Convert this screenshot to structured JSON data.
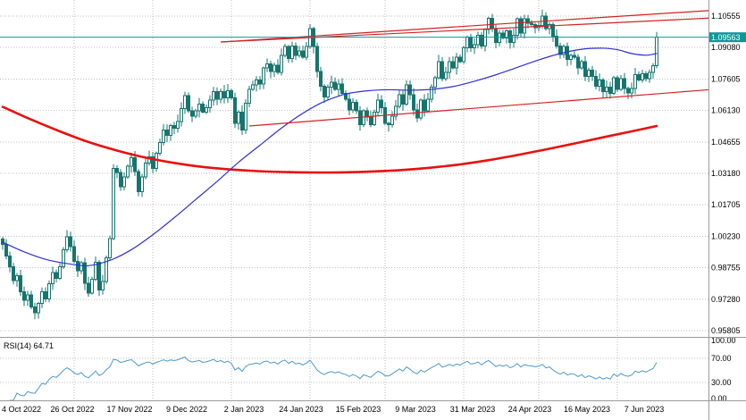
{
  "colors": {
    "background": "#ffffff",
    "grid": "#bdbdbd",
    "candle_stroke": "#16756d",
    "bull_fill": "#ffffff",
    "bear_fill": "#16756d",
    "ma_fast": "#3030cf",
    "ma_slow": "#e8100d",
    "trendline": "#d22222",
    "hline": "#0d9898",
    "badge_bg": "#0d9898",
    "badge_text": "#ffffff",
    "rsi_line": "#4f97cb",
    "separator": "#9a9a9a",
    "axis_text": "#000000"
  },
  "price_axis": {
    "ticks": [
      "1.10555",
      "1.09080",
      "1.07605",
      "1.06130",
      "1.04655",
      "1.03180",
      "1.01705",
      "1.00230",
      "0.98755",
      "0.97280",
      "0.95805"
    ],
    "current_price_label": "1.09563"
  },
  "time_axis": {
    "labels": [
      "4 Oct 2022",
      "26 Oct 2022",
      "17 Nov 2022",
      "9 Dec 2022",
      "2 Jan 2023",
      "24 Jan 2023",
      "15 Feb 2023",
      "9 Mar 2023",
      "31 Mar 2023",
      "24 Apr 2023",
      "16 May 2023",
      "7 Jun 2023"
    ]
  },
  "rsi_pane": {
    "label": "RSI(14) 64.71",
    "ticks": [
      "100.00",
      "70.00",
      "30.00",
      "0.00"
    ],
    "tick_values": [
      100,
      70,
      30,
      0
    ],
    "level_lines": [
      70,
      30
    ]
  },
  "chart_data": {
    "type": "candlestick",
    "title": "",
    "xlabel": "",
    "ylabel": "",
    "ylim": [
      0.9555,
      1.1131
    ],
    "price_ticks": [
      1.10555,
      1.0908,
      1.07605,
      1.0613,
      1.04655,
      1.0318,
      1.01705,
      1.0023,
      0.98755,
      0.9728,
      0.95805
    ],
    "x_labels": [
      "4 Oct 2022",
      "26 Oct 2022",
      "17 Nov 2022",
      "9 Dec 2022",
      "2 Jan 2023",
      "24 Jan 2023",
      "15 Feb 2023",
      "9 Mar 2023",
      "31 Mar 2023",
      "24 Apr 2023",
      "16 May 2023",
      "7 Jun 2023"
    ],
    "x_label_indices": [
      0,
      16,
      32,
      48,
      64,
      80,
      96,
      112,
      128,
      144,
      160,
      176
    ],
    "month_grid_indices": [
      20,
      42,
      64,
      86,
      107,
      129,
      150,
      172
    ],
    "first_open": 1.001,
    "closes": [
      0.9985,
      0.993,
      0.988,
      0.9815,
      0.9838,
      0.9762,
      0.9722,
      0.9748,
      0.9692,
      0.9665,
      0.9708,
      0.9762,
      0.973,
      0.98,
      0.9852,
      0.9825,
      0.988,
      0.996,
      1.002,
      0.9975,
      0.9905,
      0.9862,
      0.99,
      0.9802,
      0.9756,
      0.9822,
      0.9902,
      0.9772,
      0.9812,
      0.9922,
      1.0012,
      1.034,
      1.0322,
      1.0256,
      1.0302,
      1.0352,
      1.0392,
      1.0326,
      1.0232,
      1.0302,
      1.0366,
      1.0396,
      1.0342,
      1.0412,
      1.0462,
      1.0522,
      1.0496,
      1.0542,
      1.053,
      1.0562,
      1.0622,
      1.0682,
      1.0612,
      1.0586,
      1.0612,
      1.0642,
      1.0606,
      1.0626,
      1.0662,
      1.0702,
      1.0666,
      1.0702,
      1.0672,
      1.0706,
      1.0672,
      1.0552,
      1.0606,
      1.0522,
      1.0646,
      1.0712,
      1.0732,
      1.0756,
      1.0736,
      1.0812,
      1.0832,
      1.0796,
      1.0826,
      1.0792,
      1.0872,
      1.0912,
      1.0856,
      1.0916,
      1.0872,
      1.0892,
      1.0862,
      1.0912,
      1.0996,
      1.0912,
      1.0796,
      1.0726,
      1.0676,
      1.0722,
      1.0746,
      1.0712,
      1.0736,
      1.0692,
      1.0666,
      1.0616,
      1.0652,
      1.0612,
      1.0546,
      1.0612,
      1.0582,
      1.0546,
      1.0606,
      1.0662,
      1.0626,
      1.0552,
      1.0546,
      1.0586,
      1.0632,
      1.0686,
      1.0642,
      1.0732,
      1.0686,
      1.0616,
      1.0577,
      1.0662,
      1.0612,
      1.0666,
      1.0722,
      1.0766,
      1.0842,
      1.0762,
      1.0792,
      1.0842,
      1.0812,
      1.0862,
      1.0842,
      1.0906,
      1.0956,
      1.0906,
      1.0922,
      1.0966,
      1.0916,
      1.0992,
      1.1046,
      1.0996,
      1.0932,
      1.0976,
      1.0952,
      1.0986,
      1.0932,
      1.0966,
      1.1042,
      1.0976,
      1.1042,
      1.1022,
      1.1016,
      1.1002,
      1.1012,
      1.1056,
      1.0996,
      1.1016,
      1.0962,
      1.0916,
      1.0876,
      1.0912,
      1.0852,
      1.0872,
      1.0862,
      1.0812,
      1.0842,
      1.0772,
      1.0802,
      1.0772,
      1.0726,
      1.0756,
      1.0702,
      1.0722,
      1.0692,
      1.0766,
      1.0712,
      1.0762,
      1.0716,
      1.0696,
      1.0716,
      1.0782,
      1.0756,
      1.0786,
      1.0762,
      1.0792,
      1.0822,
      1.0956
    ],
    "moving_averages": [
      {
        "name": "ma-slow-red",
        "width": 2.6,
        "points": [
          [
            0,
            1.063
          ],
          [
            8,
            1.057
          ],
          [
            16,
            1.0515
          ],
          [
            24,
            1.0465
          ],
          [
            32,
            1.0425
          ],
          [
            40,
            1.0392
          ],
          [
            48,
            1.0367
          ],
          [
            56,
            1.0348
          ],
          [
            64,
            1.0336
          ],
          [
            72,
            1.0328
          ],
          [
            80,
            1.0324
          ],
          [
            88,
            1.0322
          ],
          [
            96,
            1.0323
          ],
          [
            104,
            1.0327
          ],
          [
            112,
            1.0334
          ],
          [
            120,
            1.0345
          ],
          [
            128,
            1.036
          ],
          [
            136,
            1.038
          ],
          [
            144,
            1.0404
          ],
          [
            152,
            1.043
          ],
          [
            160,
            1.0458
          ],
          [
            168,
            1.0487
          ],
          [
            176,
            1.0515
          ],
          [
            183,
            1.054
          ]
        ]
      },
      {
        "name": "ma-fast-blue",
        "width": 1.2,
        "points": [
          [
            0,
            0.9995
          ],
          [
            6,
            0.995
          ],
          [
            12,
            0.9915
          ],
          [
            18,
            0.9895
          ],
          [
            24,
            0.9885
          ],
          [
            30,
            0.991
          ],
          [
            36,
            0.996
          ],
          [
            42,
            1.003
          ],
          [
            48,
            1.011
          ],
          [
            54,
            1.0195
          ],
          [
            60,
            1.028
          ],
          [
            66,
            1.037
          ],
          [
            72,
            1.045
          ],
          [
            78,
            1.053
          ],
          [
            84,
            1.06
          ],
          [
            90,
            1.0655
          ],
          [
            96,
            1.069
          ],
          [
            102,
            1.0705
          ],
          [
            108,
            1.071
          ],
          [
            114,
            1.0708
          ],
          [
            120,
            1.0712
          ],
          [
            126,
            1.0725
          ],
          [
            132,
            1.075
          ],
          [
            138,
            1.078
          ],
          [
            144,
            1.0815
          ],
          [
            150,
            1.085
          ],
          [
            156,
            1.088
          ],
          [
            162,
            1.09
          ],
          [
            168,
            1.0905
          ],
          [
            172,
            1.0898
          ],
          [
            176,
            1.088
          ],
          [
            180,
            1.0872
          ],
          [
            183,
            1.088
          ]
        ]
      }
    ],
    "trendlines": [
      {
        "name": "channel-upper",
        "from": [
          61,
          1.0934
        ],
        "to": [
          200,
          1.1084
        ]
      },
      {
        "name": "channel-upper-inner",
        "from": [
          61,
          1.0934
        ],
        "to": [
          200,
          1.1048
        ]
      },
      {
        "name": "channel-lower",
        "from": [
          69,
          1.054
        ],
        "to": [
          208,
          1.0724
        ]
      }
    ],
    "hline": 1.09563,
    "current_price": 1.09563,
    "rsi": {
      "period": 14,
      "current": 64.71
    }
  }
}
